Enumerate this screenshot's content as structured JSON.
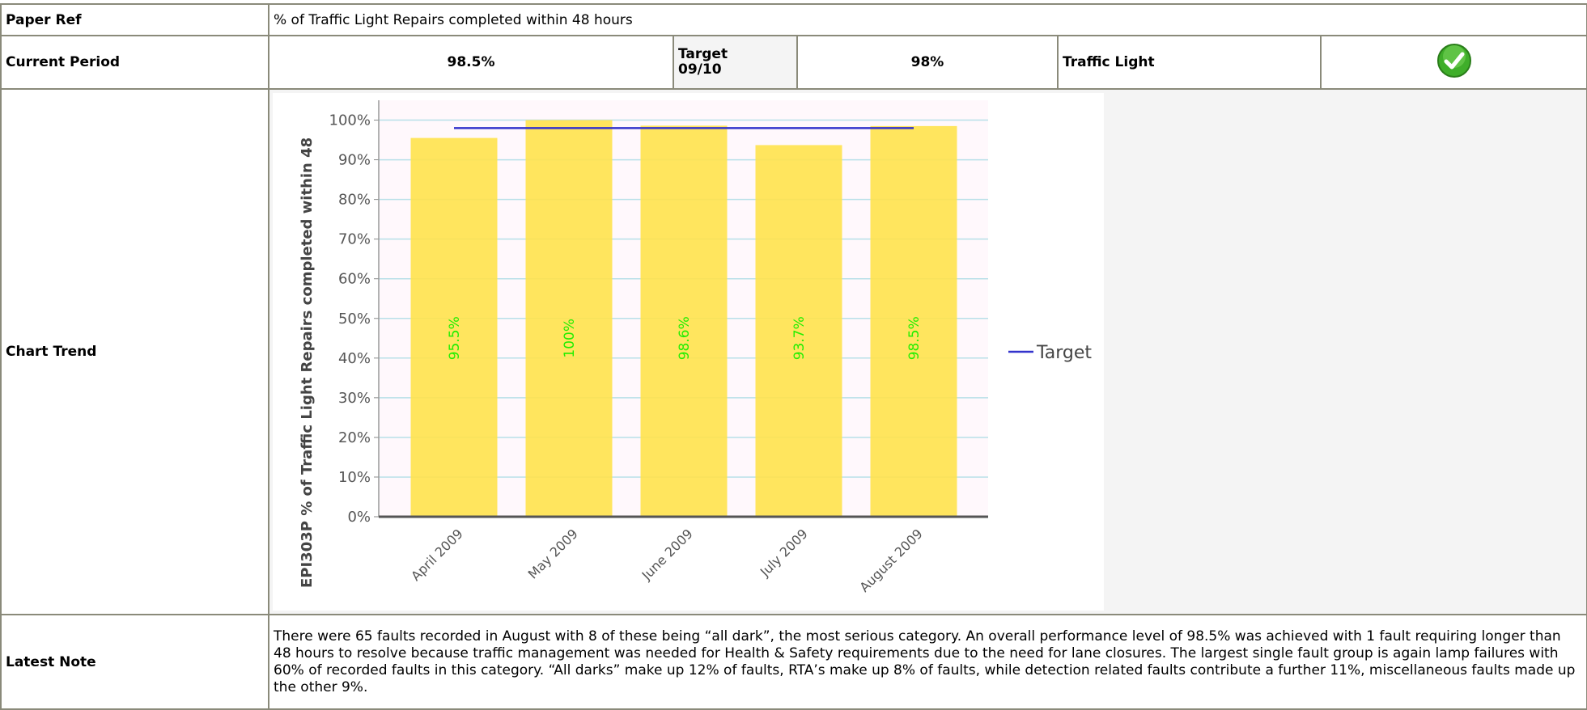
{
  "table": {
    "rows": [
      [
        "Paper Ref",
        "% of Traffic Light Repairs completed within 48 hours"
      ],
      [
        "Current Period",
        "98.5%",
        "Target\n09/10",
        "98%",
        "Traffic Light"
      ],
      [
        "Chart Trend"
      ],
      [
        "Latest Note",
        "There were 65 faults recorded in August with 8 of these being “all dark”, the most serious category. An overall performance level of 98.5% was achieved with 1 fault requiring longer than 48 hours to resolve because traffic management was needed for Health & Safety requirements due to the need for lane closures. The largest single fault group is again lamp failures with 60% of recorded faults in this category. “All darks” make up 12% of faults, RTA’s make up 8% of faults, while detection related faults contribute a further 11%, miscellaneous faults made up the other 9%."
      ]
    ]
  },
  "chart_data": {
    "type": "bar",
    "y_label": "EPI303P % of Traffic Light Repairs completed within 48",
    "categories": [
      "April 2009",
      "May 2009",
      "June 2009",
      "July 2009",
      "August 2009"
    ],
    "values": [
      95.5,
      100,
      98.6,
      93.7,
      98.5
    ],
    "value_labels": [
      "95.5%",
      "100%",
      "98.6%",
      "93.7%",
      "98.5%"
    ],
    "color": "#ffe24d",
    "series": [
      {
        "name": "Target",
        "color": "#3333cc",
        "values": [
          98,
          98,
          98,
          98,
          98
        ]
      }
    ],
    "ylim": [
      0,
      105
    ],
    "yticks": [
      {
        "value": 0,
        "label": "0%"
      },
      {
        "value": 10,
        "label": "10%"
      },
      {
        "value": 20,
        "label": "20%"
      },
      {
        "value": 30,
        "label": "30%"
      },
      {
        "value": 40,
        "label": "40%"
      },
      {
        "value": 50,
        "label": "50%"
      },
      {
        "value": 60,
        "label": "60%"
      },
      {
        "value": 70,
        "label": "70%"
      },
      {
        "value": 80,
        "label": "80%"
      },
      {
        "value": 90,
        "label": "90%"
      },
      {
        "value": 100,
        "label": "100%"
      }
    ],
    "grid": true,
    "legend": "right"
  }
}
